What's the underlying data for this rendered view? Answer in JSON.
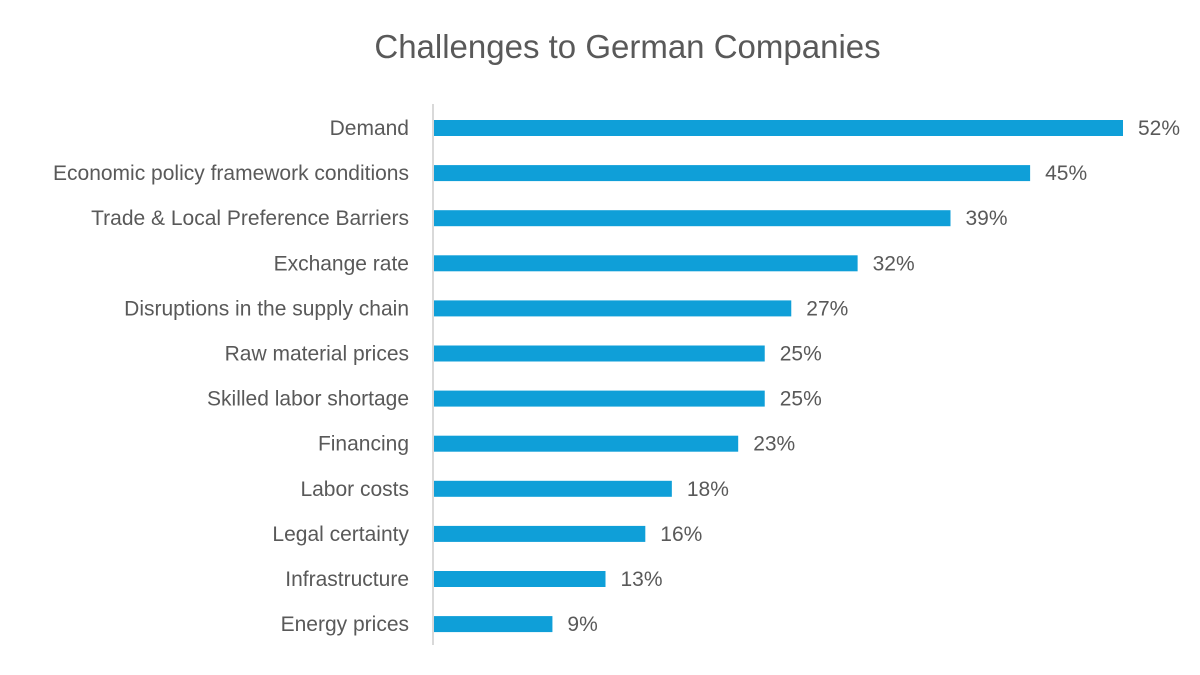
{
  "chart_data": {
    "type": "bar",
    "orientation": "horizontal",
    "title": "Challenges to German Companies",
    "categories": [
      "Demand",
      "Economic policy framework conditions",
      "Trade & Local Preference Barriers",
      "Exchange rate",
      "Disruptions in the supply chain",
      "Raw material prices",
      "Skilled labor shortage",
      "Financing",
      "Labor costs",
      "Legal certainty",
      "Infrastructure",
      "Energy prices"
    ],
    "values": [
      52,
      45,
      39,
      32,
      27,
      25,
      25,
      23,
      18,
      16,
      13,
      9
    ],
    "value_labels": [
      "52%",
      "45%",
      "39%",
      "32%",
      "27%",
      "25%",
      "25%",
      "23%",
      "18%",
      "16%",
      "13%",
      "9%"
    ],
    "unit": "%",
    "xlim": [
      0,
      52
    ],
    "grid": false,
    "legend": "none",
    "colors": {
      "bar": "#0f9fd8",
      "axis": "#d9d9d9",
      "text": "#595959"
    }
  }
}
